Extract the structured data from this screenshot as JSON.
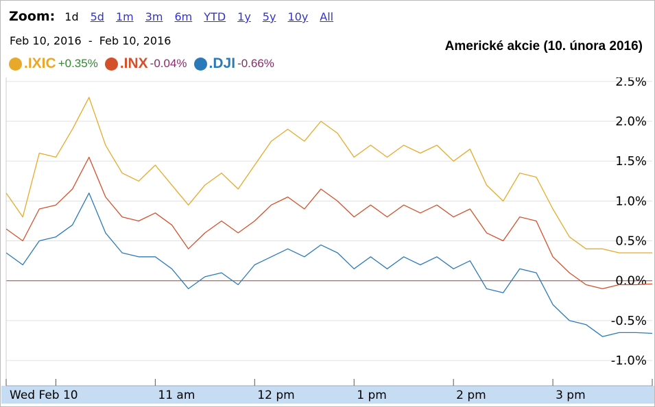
{
  "zoom": {
    "label": "Zoom:",
    "options": [
      "1d",
      "5d",
      "1m",
      "3m",
      "6m",
      "YTD",
      "1y",
      "5y",
      "10y",
      "All"
    ],
    "active": "1d"
  },
  "date_range": "Feb 10, 2016  -  Feb 10, 2016",
  "colors": {
    "ixic": "#e8a92a",
    "inx": "#d3502a",
    "dji": "#2a7ab9",
    "baseline": "#a04030",
    "axis_bar": "#c6dcf2"
  },
  "chart_data": {
    "type": "line",
    "title": "Americké akcie (10. února 2016)",
    "x_labels": [
      "Wed Feb 10",
      "11 am",
      "12 pm",
      "1 pm",
      "2 pm",
      "3 pm"
    ],
    "x_ticks": [
      "9:30",
      "10:00",
      "11:00",
      "12:00",
      "13:00",
      "14:00",
      "15:00",
      "16:00"
    ],
    "y_ticks": [
      "2.5%",
      "2.0%",
      "1.5%",
      "1.0%",
      "0.5%",
      "0.0%",
      "-0.5%",
      "-1.0%"
    ],
    "y_tick_values": [
      2.5,
      2.0,
      1.5,
      1.0,
      0.5,
      0.0,
      -0.5,
      -1.0
    ],
    "ylim": [
      -1.3,
      2.55
    ],
    "x_range": [
      "9:30",
      "16:00"
    ],
    "series": [
      {
        "name": ".IXIC",
        "change": "+0.35%",
        "change_color": "#2e8b2e",
        "x": [
          "9:30",
          "9:40",
          "9:50",
          "10:00",
          "10:10",
          "10:20",
          "10:30",
          "10:40",
          "10:50",
          "11:00",
          "11:10",
          "11:20",
          "11:30",
          "11:40",
          "11:50",
          "12:00",
          "12:10",
          "12:20",
          "12:30",
          "12:40",
          "12:50",
          "13:00",
          "13:10",
          "13:20",
          "13:30",
          "13:40",
          "13:50",
          "14:00",
          "14:10",
          "14:20",
          "14:30",
          "14:40",
          "14:50",
          "15:00",
          "15:10",
          "15:20",
          "15:30",
          "15:40",
          "15:50",
          "16:00"
        ],
        "values": [
          1.1,
          0.8,
          1.6,
          1.55,
          1.9,
          2.3,
          1.7,
          1.35,
          1.25,
          1.45,
          1.2,
          0.95,
          1.2,
          1.35,
          1.15,
          1.45,
          1.75,
          1.9,
          1.75,
          2.0,
          1.85,
          1.55,
          1.7,
          1.55,
          1.7,
          1.6,
          1.7,
          1.5,
          1.65,
          1.2,
          1.0,
          1.35,
          1.3,
          0.9,
          0.55,
          0.4,
          0.4,
          0.35,
          0.35,
          0.35
        ]
      },
      {
        "name": ".INX",
        "change": "-0.04%",
        "change_color": "#8a2a6a",
        "x": [
          "9:30",
          "9:40",
          "9:50",
          "10:00",
          "10:10",
          "10:20",
          "10:30",
          "10:40",
          "10:50",
          "11:00",
          "11:10",
          "11:20",
          "11:30",
          "11:40",
          "11:50",
          "12:00",
          "12:10",
          "12:20",
          "12:30",
          "12:40",
          "12:50",
          "13:00",
          "13:10",
          "13:20",
          "13:30",
          "13:40",
          "13:50",
          "14:00",
          "14:10",
          "14:20",
          "14:30",
          "14:40",
          "14:50",
          "15:00",
          "15:10",
          "15:20",
          "15:30",
          "15:40",
          "15:50",
          "16:00"
        ],
        "values": [
          0.65,
          0.5,
          0.9,
          0.95,
          1.15,
          1.55,
          1.05,
          0.8,
          0.75,
          0.85,
          0.7,
          0.4,
          0.6,
          0.75,
          0.6,
          0.75,
          0.95,
          1.05,
          0.9,
          1.15,
          1.0,
          0.8,
          0.95,
          0.8,
          0.95,
          0.85,
          0.95,
          0.8,
          0.9,
          0.6,
          0.5,
          0.8,
          0.75,
          0.3,
          0.1,
          -0.05,
          -0.1,
          -0.05,
          -0.05,
          -0.04
        ]
      },
      {
        "name": ".DJI",
        "change": "-0.66%",
        "change_color": "#8a2a6a",
        "x": [
          "9:30",
          "9:40",
          "9:50",
          "10:00",
          "10:10",
          "10:20",
          "10:30",
          "10:40",
          "10:50",
          "11:00",
          "11:10",
          "11:20",
          "11:30",
          "11:40",
          "11:50",
          "12:00",
          "12:10",
          "12:20",
          "12:30",
          "12:40",
          "12:50",
          "13:00",
          "13:10",
          "13:20",
          "13:30",
          "13:40",
          "13:50",
          "14:00",
          "14:10",
          "14:20",
          "14:30",
          "14:40",
          "14:50",
          "15:00",
          "15:10",
          "15:20",
          "15:30",
          "15:40",
          "15:50",
          "16:00"
        ],
        "values": [
          0.35,
          0.2,
          0.5,
          0.55,
          0.7,
          1.1,
          0.6,
          0.35,
          0.3,
          0.3,
          0.15,
          -0.1,
          0.05,
          0.1,
          -0.05,
          0.2,
          0.3,
          0.4,
          0.3,
          0.45,
          0.35,
          0.15,
          0.3,
          0.15,
          0.3,
          0.2,
          0.3,
          0.15,
          0.25,
          -0.1,
          -0.15,
          0.15,
          0.1,
          -0.3,
          -0.5,
          -0.55,
          -0.7,
          -0.65,
          -0.65,
          -0.66
        ]
      }
    ]
  }
}
